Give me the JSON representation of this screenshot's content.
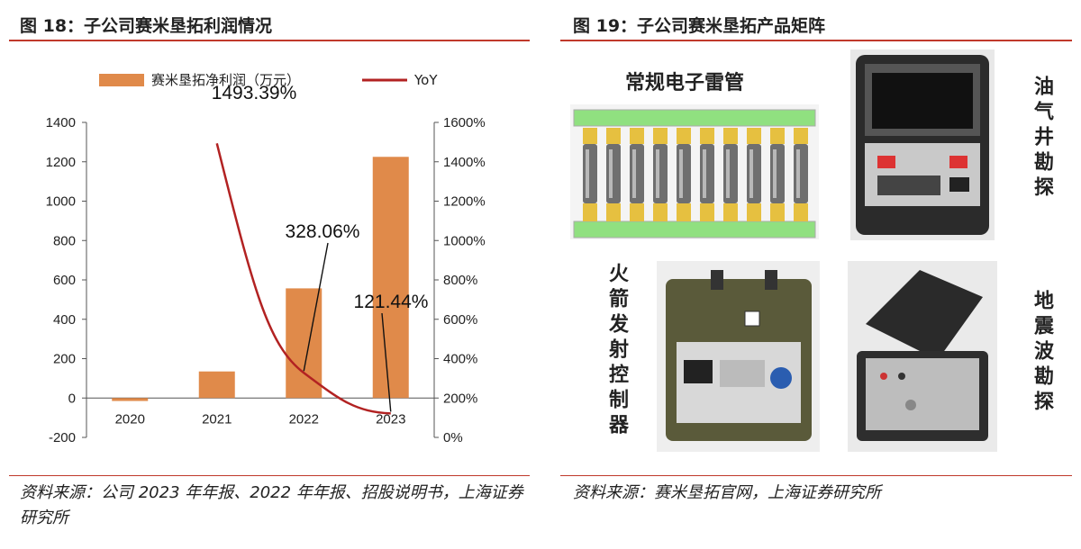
{
  "left_panel": {
    "title": "图 18：子公司赛米垦拓利润情况",
    "source": "资料来源：公司 2023 年年报、2022 年年报、招股说明书，上海证券研究所"
  },
  "right_panel": {
    "title": "图 19：子公司赛米垦拓产品矩阵",
    "source": "资料来源：赛米垦拓官网，上海证券研究所",
    "products": {
      "detonator": "常规电子雷管",
      "oil_gas": "油气井勘探",
      "rocket": "火箭发射控制器",
      "seismic": "地震波勘探"
    }
  },
  "colors": {
    "bar": "#E08A4A",
    "line": "#B22222",
    "rule": "#C0392B"
  },
  "chart_data": {
    "type": "bar",
    "categories": [
      "2020",
      "2021",
      "2022",
      "2023"
    ],
    "series": [
      {
        "name": "赛米垦拓净利润（万元）",
        "type": "bar",
        "axis": "left",
        "values": [
          -15,
          135,
          557,
          1225
        ]
      },
      {
        "name": "YoY",
        "type": "line",
        "axis": "right",
        "x": [
          "2021",
          "2022",
          "2023"
        ],
        "values": [
          1493.39,
          328.06,
          121.44
        ]
      }
    ],
    "left_axis": {
      "ylim": [
        -200,
        1400
      ],
      "ticks": [
        "-200",
        "0",
        "200",
        "400",
        "600",
        "800",
        "1000",
        "1200",
        "1400"
      ]
    },
    "right_axis": {
      "ylim": [
        0,
        1600
      ],
      "ticks": [
        "0%",
        "200%",
        "400%",
        "600%",
        "800%",
        "1000%",
        "1200%",
        "1400%",
        "1600%"
      ]
    },
    "annotations": [
      {
        "x": "2021",
        "value": 1493.39,
        "text": "1493.39%"
      },
      {
        "x": "2022",
        "value": 328.06,
        "text": "328.06%"
      },
      {
        "x": "2023",
        "value": 121.44,
        "text": "121.44%"
      }
    ],
    "legend_position": "top",
    "grid": false
  }
}
